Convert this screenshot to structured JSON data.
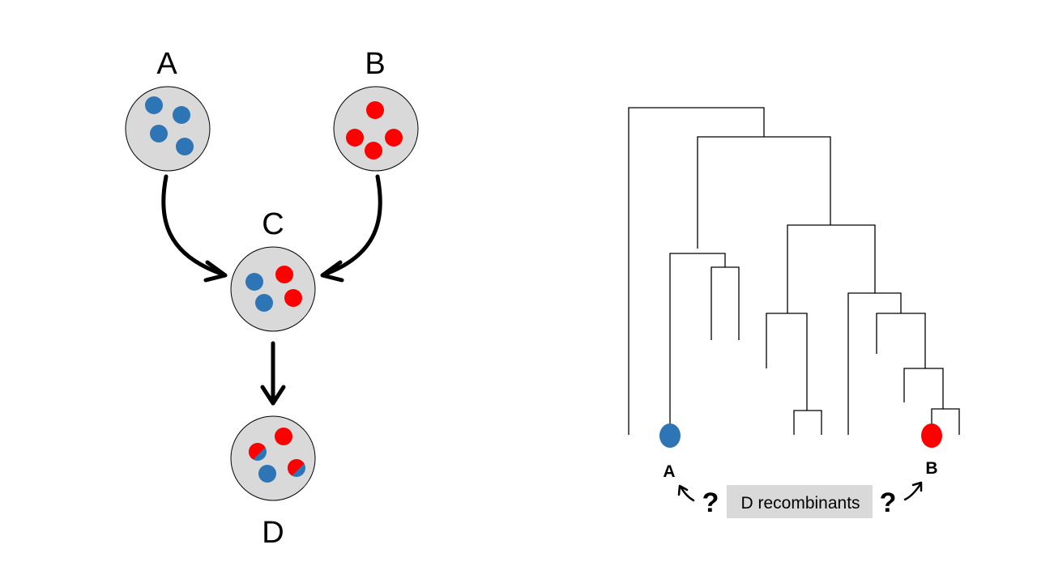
{
  "colors": {
    "blue": "#2e75b6",
    "red": "#ff0000",
    "pool_fill": "#d9d9d9",
    "stroke": "#000000",
    "label_box": "#d9d9d9"
  },
  "left": {
    "labels": {
      "a": "A",
      "b": "B",
      "c": "C",
      "d": "D"
    }
  },
  "right": {
    "leaf_labels": {
      "a": "A",
      "b": "B"
    },
    "question_mark": "?",
    "recombinants_label": "D recombinants"
  }
}
